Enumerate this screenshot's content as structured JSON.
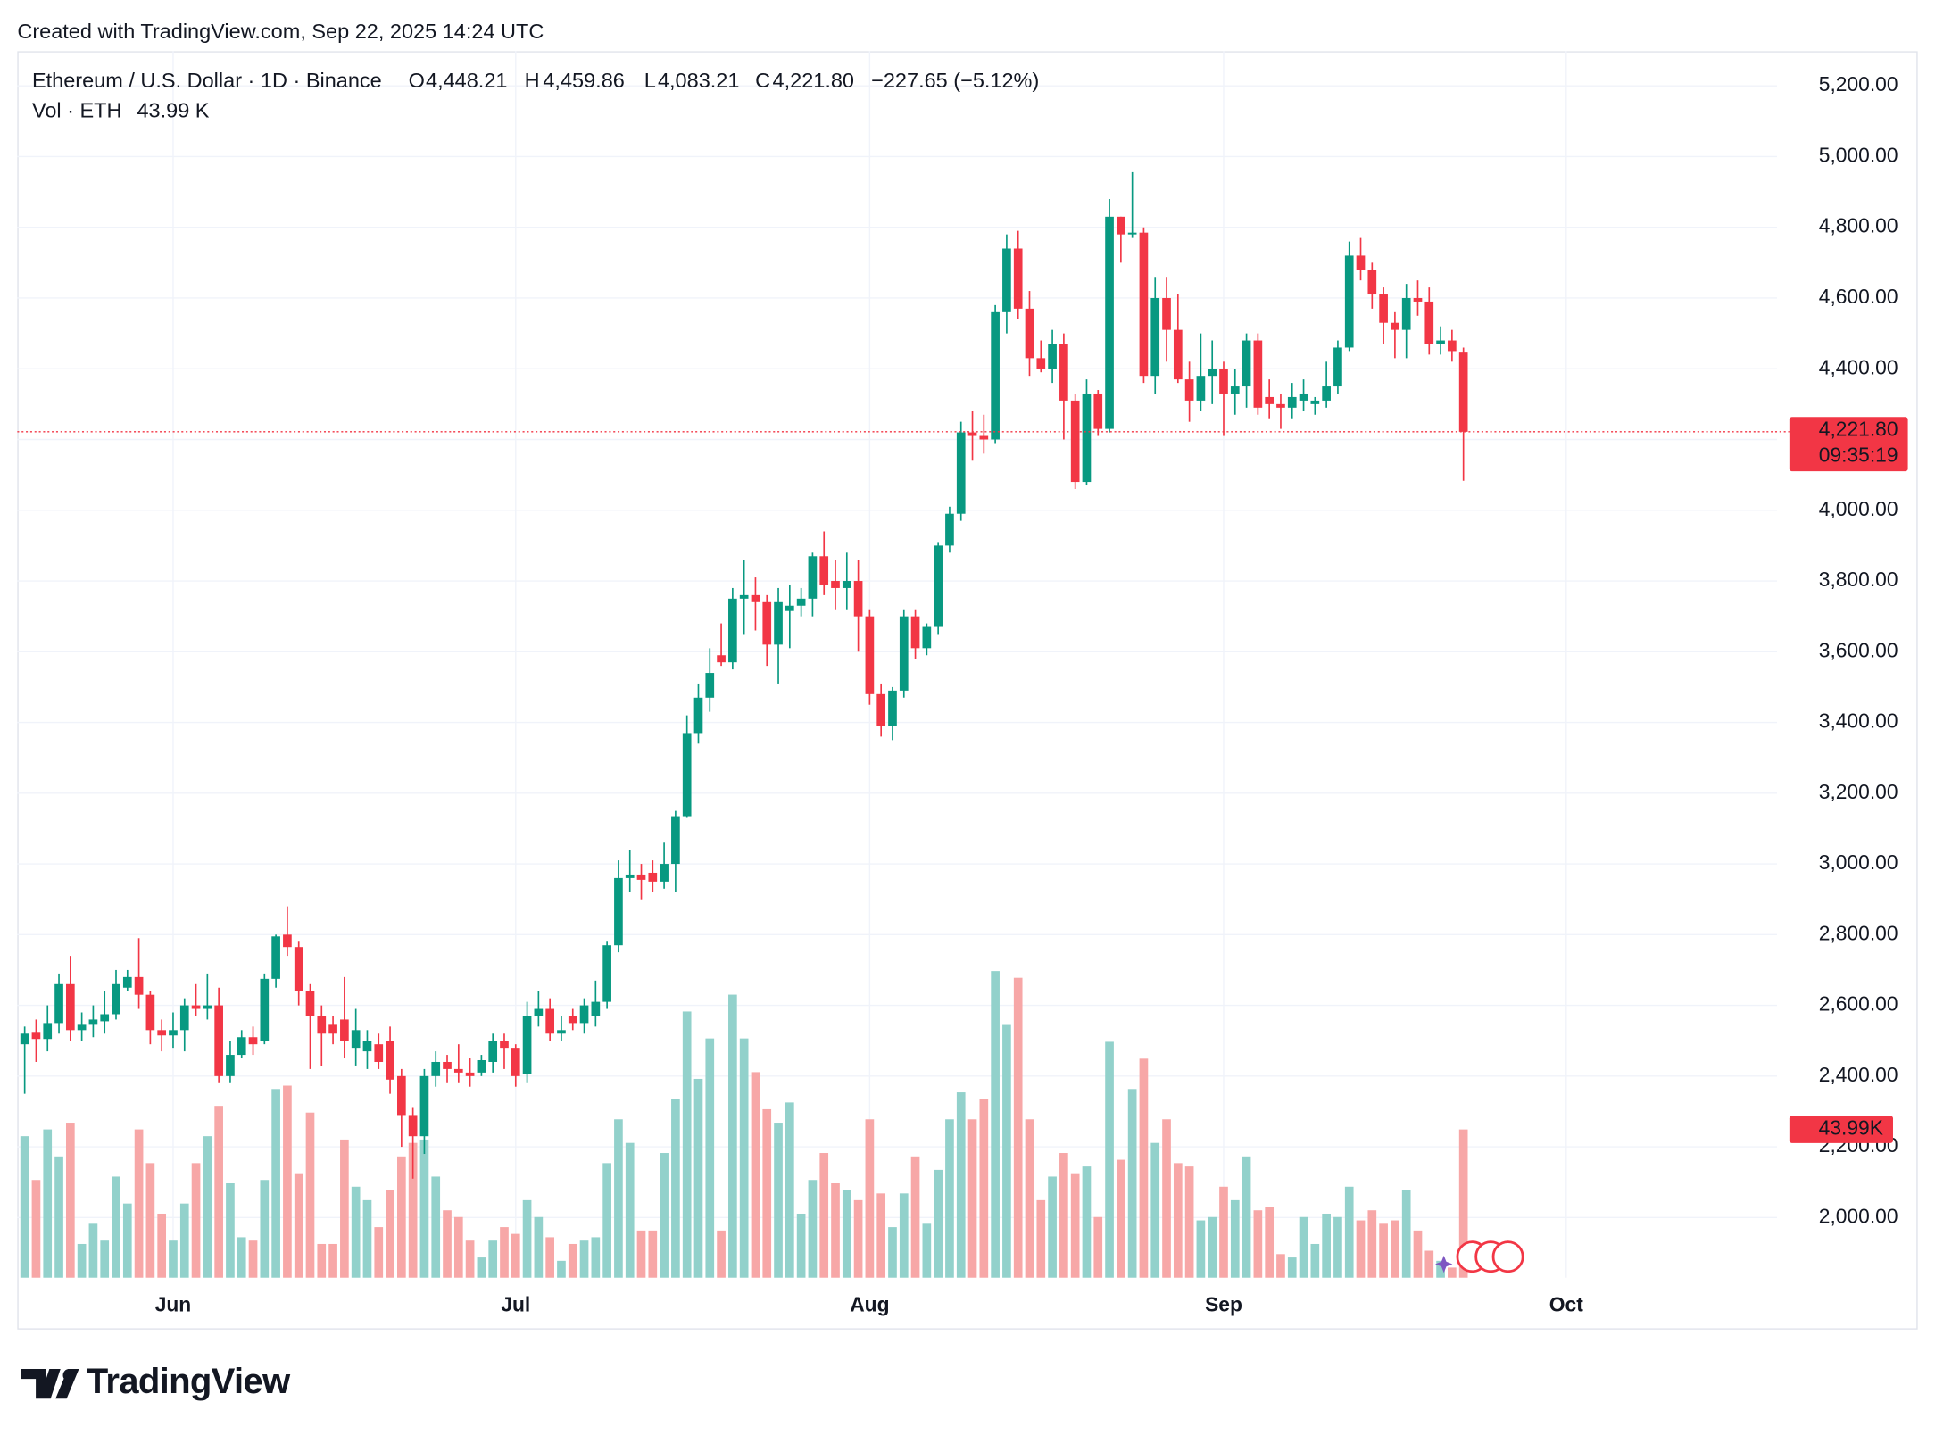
{
  "header": {
    "created": "Created with TradingView.com, Sep 22, 2025 14:24 UTC",
    "brand": "TradingView"
  },
  "chart_data": {
    "type": "candlestick",
    "title": "Ethereum / U.S. Dollar · 1D · Binance",
    "legend": {
      "open_key": "O",
      "open": "4,448.21",
      "high_key": "H",
      "high": "4,459.86",
      "low_key": "L",
      "low": "4,083.21",
      "close_key": "C",
      "close": "4,221.80",
      "change": "−227.65 (−5.12%)",
      "volume_title": "Vol · ETH",
      "volume": "43.99 K"
    },
    "last_price_label": "4,221.80",
    "countdown": "09:35:19",
    "last_volume_label": "43.99K",
    "up_color": "#089981",
    "down_color": "#f23645",
    "up_volume_color": "#92d1cb",
    "down_volume_color": "#f7a7a7",
    "grid": true,
    "ylim": [
      1830,
      5298
    ],
    "volume_lim": [
      0,
      364
    ],
    "yticks": [
      {
        "value": 2000,
        "label": "2,000.00"
      },
      {
        "value": 2200,
        "label": "2,200.00"
      },
      {
        "value": 2400,
        "label": "2,400.00"
      },
      {
        "value": 2600,
        "label": "2,600.00"
      },
      {
        "value": 2800,
        "label": "2,800.00"
      },
      {
        "value": 3000,
        "label": "3,000.00"
      },
      {
        "value": 3200,
        "label": "3,200.00"
      },
      {
        "value": 3400,
        "label": "3,400.00"
      },
      {
        "value": 3600,
        "label": "3,600.00"
      },
      {
        "value": 3800,
        "label": "3,800.00"
      },
      {
        "value": 4000,
        "label": "4,000.00"
      },
      {
        "value": 4200,
        "label": "4,200.00"
      },
      {
        "value": 4400,
        "label": "4,400.00"
      },
      {
        "value": 4600,
        "label": "4,600.00"
      },
      {
        "value": 4800,
        "label": "4,800.00"
      },
      {
        "value": 5000,
        "label": "5,000.00"
      },
      {
        "value": 5200,
        "label": "5,200.00"
      }
    ],
    "categories": [
      null,
      null,
      null,
      null,
      null,
      null,
      null,
      null,
      null,
      null,
      null,
      null,
      null,
      "Jun",
      null,
      null,
      null,
      null,
      null,
      null,
      null,
      null,
      null,
      null,
      null,
      null,
      null,
      null,
      null,
      null,
      null,
      null,
      null,
      null,
      null,
      null,
      null,
      null,
      null,
      null,
      null,
      null,
      null,
      "Jul",
      null,
      null,
      null,
      null,
      null,
      null,
      null,
      null,
      null,
      null,
      null,
      null,
      null,
      null,
      null,
      null,
      null,
      null,
      null,
      null,
      null,
      null,
      null,
      null,
      null,
      null,
      null,
      null,
      null,
      null,
      "Aug",
      null,
      null,
      null,
      null,
      null,
      null,
      null,
      null,
      null,
      null,
      null,
      null,
      null,
      null,
      null,
      null,
      null,
      null,
      null,
      null,
      null,
      null,
      null,
      null,
      null,
      null,
      null,
      null,
      null,
      null,
      "Sep",
      null,
      null,
      null,
      null,
      null,
      null,
      null,
      null,
      null,
      null,
      null,
      null,
      null,
      null,
      null,
      null,
      null,
      null,
      null,
      null,
      null,
      null,
      null,
      null,
      null,
      null,
      null,
      null,
      null,
      "Oct"
    ],
    "candles": [
      {
        "open": 2490,
        "high": 2540,
        "low": 2350,
        "close": 2520,
        "volume": 42
      },
      {
        "open": 2525,
        "high": 2560,
        "low": 2440,
        "close": 2505,
        "volume": 29
      },
      {
        "open": 2505,
        "high": 2600,
        "low": 2470,
        "close": 2550,
        "volume": 44
      },
      {
        "open": 2550,
        "high": 2690,
        "low": 2520,
        "close": 2660,
        "volume": 36
      },
      {
        "open": 2660,
        "high": 2740,
        "low": 2500,
        "close": 2530,
        "volume": 46
      },
      {
        "open": 2530,
        "high": 2580,
        "low": 2500,
        "close": 2545,
        "volume": 10
      },
      {
        "open": 2545,
        "high": 2600,
        "low": 2510,
        "close": 2560,
        "volume": 16
      },
      {
        "open": 2555,
        "high": 2640,
        "low": 2520,
        "close": 2575,
        "volume": 11
      },
      {
        "open": 2575,
        "high": 2700,
        "low": 2560,
        "close": 2660,
        "volume": 30
      },
      {
        "open": 2650,
        "high": 2700,
        "low": 2640,
        "close": 2680,
        "volume": 22
      },
      {
        "open": 2680,
        "high": 2790,
        "low": 2590,
        "close": 2630,
        "volume": 44
      },
      {
        "open": 2630,
        "high": 2640,
        "low": 2490,
        "close": 2530,
        "volume": 34
      },
      {
        "open": 2530,
        "high": 2560,
        "low": 2470,
        "close": 2515,
        "volume": 19
      },
      {
        "open": 2515,
        "high": 2580,
        "low": 2480,
        "close": 2530,
        "volume": 11
      },
      {
        "open": 2530,
        "high": 2620,
        "low": 2470,
        "close": 2600,
        "volume": 22
      },
      {
        "open": 2600,
        "high": 2660,
        "low": 2570,
        "close": 2590,
        "volume": 34
      },
      {
        "open": 2590,
        "high": 2690,
        "low": 2560,
        "close": 2600,
        "volume": 42
      },
      {
        "open": 2600,
        "high": 2650,
        "low": 2380,
        "close": 2400,
        "volume": 51
      },
      {
        "open": 2400,
        "high": 2500,
        "low": 2380,
        "close": 2460,
        "volume": 28
      },
      {
        "open": 2460,
        "high": 2530,
        "low": 2450,
        "close": 2510,
        "volume": 12
      },
      {
        "open": 2510,
        "high": 2540,
        "low": 2460,
        "close": 2490,
        "volume": 11
      },
      {
        "open": 2500,
        "high": 2690,
        "low": 2490,
        "close": 2675,
        "volume": 29
      },
      {
        "open": 2675,
        "high": 2800,
        "low": 2650,
        "close": 2795,
        "volume": 56
      },
      {
        "open": 2800,
        "high": 2880,
        "low": 2740,
        "close": 2765,
        "volume": 57
      },
      {
        "open": 2765,
        "high": 2780,
        "low": 2600,
        "close": 2640,
        "volume": 31
      },
      {
        "open": 2640,
        "high": 2660,
        "low": 2420,
        "close": 2570,
        "volume": 49
      },
      {
        "open": 2570,
        "high": 2600,
        "low": 2430,
        "close": 2520,
        "volume": 10
      },
      {
        "open": 2545,
        "high": 2570,
        "low": 2490,
        "close": 2520,
        "volume": 10
      },
      {
        "open": 2560,
        "high": 2680,
        "low": 2450,
        "close": 2500,
        "volume": 41
      },
      {
        "open": 2480,
        "high": 2590,
        "low": 2430,
        "close": 2530,
        "volume": 27
      },
      {
        "open": 2470,
        "high": 2530,
        "low": 2420,
        "close": 2500,
        "volume": 23
      },
      {
        "open": 2490,
        "high": 2520,
        "low": 2420,
        "close": 2440,
        "volume": 15
      },
      {
        "open": 2500,
        "high": 2540,
        "low": 2350,
        "close": 2390,
        "volume": 26
      },
      {
        "open": 2400,
        "high": 2420,
        "low": 2200,
        "close": 2290,
        "volume": 36
      },
      {
        "open": 2290,
        "high": 2310,
        "low": 2110,
        "close": 2230,
        "volume": 40
      },
      {
        "open": 2230,
        "high": 2420,
        "low": 2180,
        "close": 2400,
        "volume": 41
      },
      {
        "open": 2400,
        "high": 2470,
        "low": 2370,
        "close": 2440,
        "volume": 30
      },
      {
        "open": 2440,
        "high": 2460,
        "low": 2380,
        "close": 2420,
        "volume": 20
      },
      {
        "open": 2420,
        "high": 2490,
        "low": 2380,
        "close": 2410,
        "volume": 18
      },
      {
        "open": 2410,
        "high": 2450,
        "low": 2370,
        "close": 2400,
        "volume": 11
      },
      {
        "open": 2410,
        "high": 2460,
        "low": 2400,
        "close": 2445,
        "volume": 6
      },
      {
        "open": 2440,
        "high": 2520,
        "low": 2410,
        "close": 2500,
        "volume": 11
      },
      {
        "open": 2500,
        "high": 2520,
        "low": 2420,
        "close": 2480,
        "volume": 15
      },
      {
        "open": 2480,
        "high": 2490,
        "low": 2370,
        "close": 2400,
        "volume": 13
      },
      {
        "open": 2405,
        "high": 2610,
        "low": 2380,
        "close": 2570,
        "volume": 23
      },
      {
        "open": 2570,
        "high": 2640,
        "low": 2540,
        "close": 2590,
        "volume": 18
      },
      {
        "open": 2590,
        "high": 2620,
        "low": 2500,
        "close": 2520,
        "volume": 12
      },
      {
        "open": 2520,
        "high": 2570,
        "low": 2500,
        "close": 2530,
        "volume": 5
      },
      {
        "open": 2570,
        "high": 2590,
        "low": 2530,
        "close": 2550,
        "volume": 10
      },
      {
        "open": 2550,
        "high": 2620,
        "low": 2520,
        "close": 2600,
        "volume": 11
      },
      {
        "open": 2570,
        "high": 2670,
        "low": 2540,
        "close": 2610,
        "volume": 12
      },
      {
        "open": 2610,
        "high": 2780,
        "low": 2590,
        "close": 2770,
        "volume": 34
      },
      {
        "open": 2770,
        "high": 3010,
        "low": 2750,
        "close": 2960,
        "volume": 47
      },
      {
        "open": 2960,
        "high": 3040,
        "low": 2920,
        "close": 2970,
        "volume": 40
      },
      {
        "open": 2970,
        "high": 3000,
        "low": 2900,
        "close": 2955,
        "volume": 14
      },
      {
        "open": 2975,
        "high": 3010,
        "low": 2920,
        "close": 2950,
        "volume": 14
      },
      {
        "open": 2950,
        "high": 3060,
        "low": 2930,
        "close": 3000,
        "volume": 37
      },
      {
        "open": 3000,
        "high": 3150,
        "low": 2920,
        "close": 3135,
        "volume": 53
      },
      {
        "open": 3135,
        "high": 3420,
        "low": 3130,
        "close": 3370,
        "volume": 79
      },
      {
        "open": 3370,
        "high": 3510,
        "low": 3340,
        "close": 3470,
        "volume": 59
      },
      {
        "open": 3470,
        "high": 3610,
        "low": 3430,
        "close": 3540,
        "volume": 71
      },
      {
        "open": 3590,
        "high": 3680,
        "low": 3560,
        "close": 3570,
        "volume": 14
      },
      {
        "open": 3570,
        "high": 3780,
        "low": 3550,
        "close": 3750,
        "volume": 84
      },
      {
        "open": 3750,
        "high": 3860,
        "low": 3650,
        "close": 3760,
        "volume": 71
      },
      {
        "open": 3760,
        "high": 3810,
        "low": 3660,
        "close": 3740,
        "volume": 61
      },
      {
        "open": 3740,
        "high": 3760,
        "low": 3560,
        "close": 3620,
        "volume": 50
      },
      {
        "open": 3620,
        "high": 3780,
        "low": 3510,
        "close": 3740,
        "volume": 46
      },
      {
        "open": 3715,
        "high": 3790,
        "low": 3610,
        "close": 3730,
        "volume": 52
      },
      {
        "open": 3730,
        "high": 3780,
        "low": 3700,
        "close": 3750,
        "volume": 19
      },
      {
        "open": 3750,
        "high": 3880,
        "low": 3700,
        "close": 3870,
        "volume": 29
      },
      {
        "open": 3870,
        "high": 3940,
        "low": 3760,
        "close": 3790,
        "volume": 37
      },
      {
        "open": 3800,
        "high": 3860,
        "low": 3720,
        "close": 3780,
        "volume": 28
      },
      {
        "open": 3780,
        "high": 3880,
        "low": 3720,
        "close": 3800,
        "volume": 26
      },
      {
        "open": 3800,
        "high": 3860,
        "low": 3600,
        "close": 3700,
        "volume": 23
      },
      {
        "open": 3700,
        "high": 3720,
        "low": 3450,
        "close": 3480,
        "volume": 47
      },
      {
        "open": 3480,
        "high": 3510,
        "low": 3360,
        "close": 3390,
        "volume": 25
      },
      {
        "open": 3390,
        "high": 3500,
        "low": 3350,
        "close": 3490,
        "volume": 15
      },
      {
        "open": 3490,
        "high": 3720,
        "low": 3470,
        "close": 3700,
        "volume": 25
      },
      {
        "open": 3700,
        "high": 3720,
        "low": 3580,
        "close": 3610,
        "volume": 36
      },
      {
        "open": 3610,
        "high": 3680,
        "low": 3590,
        "close": 3670,
        "volume": 16
      },
      {
        "open": 3670,
        "high": 3910,
        "low": 3650,
        "close": 3900,
        "volume": 32
      },
      {
        "open": 3900,
        "high": 4010,
        "low": 3880,
        "close": 3990,
        "volume": 47
      },
      {
        "open": 3990,
        "high": 4250,
        "low": 3970,
        "close": 4220,
        "volume": 55
      },
      {
        "open": 4220,
        "high": 4280,
        "low": 4140,
        "close": 4210,
        "volume": 47
      },
      {
        "open": 4210,
        "high": 4270,
        "low": 4160,
        "close": 4200,
        "volume": 53
      },
      {
        "open": 4200,
        "high": 4580,
        "low": 4190,
        "close": 4560,
        "volume": 91
      },
      {
        "open": 4560,
        "high": 4780,
        "low": 4500,
        "close": 4740,
        "volume": 75
      },
      {
        "open": 4740,
        "high": 4790,
        "low": 4540,
        "close": 4570,
        "volume": 89
      },
      {
        "open": 4570,
        "high": 4620,
        "low": 4380,
        "close": 4430,
        "volume": 47
      },
      {
        "open": 4430,
        "high": 4480,
        "low": 4390,
        "close": 4400,
        "volume": 23
      },
      {
        "open": 4400,
        "high": 4510,
        "low": 4360,
        "close": 4470,
        "volume": 30
      },
      {
        "open": 4470,
        "high": 4500,
        "low": 4200,
        "close": 4310,
        "volume": 37
      },
      {
        "open": 4310,
        "high": 4330,
        "low": 4060,
        "close": 4080,
        "volume": 31
      },
      {
        "open": 4080,
        "high": 4370,
        "low": 4070,
        "close": 4330,
        "volume": 33
      },
      {
        "open": 4330,
        "high": 4340,
        "low": 4210,
        "close": 4230,
        "volume": 18
      },
      {
        "open": 4230,
        "high": 4880,
        "low": 4220,
        "close": 4830,
        "volume": 70
      },
      {
        "open": 4830,
        "high": 4830,
        "low": 4700,
        "close": 4780,
        "volume": 35
      },
      {
        "open": 4780,
        "high": 4956,
        "low": 4770,
        "close": 4785,
        "volume": 56
      },
      {
        "open": 4785,
        "high": 4800,
        "low": 4360,
        "close": 4380,
        "volume": 65
      },
      {
        "open": 4380,
        "high": 4660,
        "low": 4330,
        "close": 4600,
        "volume": 40
      },
      {
        "open": 4600,
        "high": 4660,
        "low": 4420,
        "close": 4510,
        "volume": 47
      },
      {
        "open": 4510,
        "high": 4610,
        "low": 4360,
        "close": 4370,
        "volume": 34
      },
      {
        "open": 4370,
        "high": 4420,
        "low": 4250,
        "close": 4310,
        "volume": 33
      },
      {
        "open": 4310,
        "high": 4500,
        "low": 4280,
        "close": 4380,
        "volume": 17
      },
      {
        "open": 4380,
        "high": 4480,
        "low": 4300,
        "close": 4400,
        "volume": 18
      },
      {
        "open": 4400,
        "high": 4420,
        "low": 4210,
        "close": 4330,
        "volume": 27
      },
      {
        "open": 4330,
        "high": 4400,
        "low": 4270,
        "close": 4350,
        "volume": 23
      },
      {
        "open": 4350,
        "high": 4500,
        "low": 4290,
        "close": 4480,
        "volume": 36
      },
      {
        "open": 4480,
        "high": 4500,
        "low": 4270,
        "close": 4290,
        "volume": 20
      },
      {
        "open": 4320,
        "high": 4370,
        "low": 4260,
        "close": 4300,
        "volume": 21
      },
      {
        "open": 4300,
        "high": 4330,
        "low": 4230,
        "close": 4290,
        "volume": 7
      },
      {
        "open": 4290,
        "high": 4360,
        "low": 4260,
        "close": 4320,
        "volume": 6
      },
      {
        "open": 4310,
        "high": 4370,
        "low": 4280,
        "close": 4330,
        "volume": 18
      },
      {
        "open": 4300,
        "high": 4320,
        "low": 4270,
        "close": 4310,
        "volume": 10
      },
      {
        "open": 4310,
        "high": 4420,
        "low": 4290,
        "close": 4350,
        "volume": 19
      },
      {
        "open": 4350,
        "high": 4480,
        "low": 4330,
        "close": 4460,
        "volume": 18
      },
      {
        "open": 4460,
        "high": 4760,
        "low": 4450,
        "close": 4720,
        "volume": 27
      },
      {
        "open": 4720,
        "high": 4770,
        "low": 4650,
        "close": 4680,
        "volume": 17
      },
      {
        "open": 4680,
        "high": 4700,
        "low": 4570,
        "close": 4610,
        "volume": 20
      },
      {
        "open": 4610,
        "high": 4630,
        "low": 4470,
        "close": 4530,
        "volume": 16
      },
      {
        "open": 4530,
        "high": 4560,
        "low": 4430,
        "close": 4510,
        "volume": 17
      },
      {
        "open": 4510,
        "high": 4640,
        "low": 4430,
        "close": 4600,
        "volume": 26
      },
      {
        "open": 4600,
        "high": 4650,
        "low": 4550,
        "close": 4590,
        "volume": 14
      },
      {
        "open": 4590,
        "high": 4630,
        "low": 4440,
        "close": 4470,
        "volume": 8
      },
      {
        "open": 4470,
        "high": 4520,
        "low": 4440,
        "close": 4480,
        "volume": 5
      },
      {
        "open": 4480,
        "high": 4510,
        "low": 4420,
        "close": 4450,
        "volume": 3
      },
      {
        "open": 4448.21,
        "high": 4459.86,
        "low": 4083.21,
        "close": 4221.8,
        "volume": 43.99
      },
      null,
      null,
      null,
      null,
      null,
      null,
      null,
      null,
      null
    ]
  }
}
